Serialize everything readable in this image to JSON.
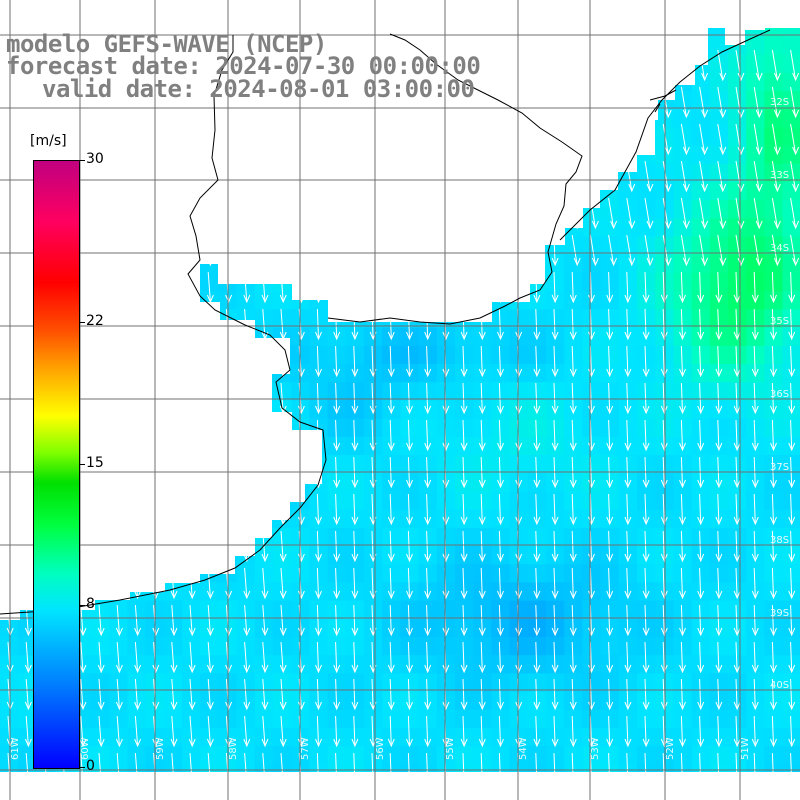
{
  "title": {
    "model": "modelo GEFS-WAVE (NCEP)",
    "forecast": "forecast date: 2024-07-30 00:00:00",
    "valid": "valid date: 2024-08-01 03:00:00"
  },
  "colorbar": {
    "unit": "[m/s]",
    "min": 0,
    "max": 30,
    "labels": [
      "30",
      "22",
      "15",
      "8",
      "0"
    ]
  },
  "longitude_labels": [
    "61W",
    "60W",
    "59W",
    "58W",
    "57W",
    "56W",
    "55W",
    "54W",
    "53W",
    "52W",
    "51W"
  ],
  "latitude_labels": [
    "32S",
    "33S",
    "34S",
    "35S",
    "36S",
    "37S",
    "38S",
    "39S",
    "40S"
  ],
  "colors": {
    "land": "#ffffff",
    "coast": "#000000",
    "grid": "#707070",
    "arrow": "#ffffff",
    "title": "#808080"
  },
  "wind_field": {
    "variable": "wind speed",
    "range_shown_ms": [
      6,
      12
    ],
    "dominant_direction": "toward south",
    "max_region": "northeast offshore (green, ~11 m/s)",
    "min_region": "south-central (blue, ~6 m/s)"
  }
}
